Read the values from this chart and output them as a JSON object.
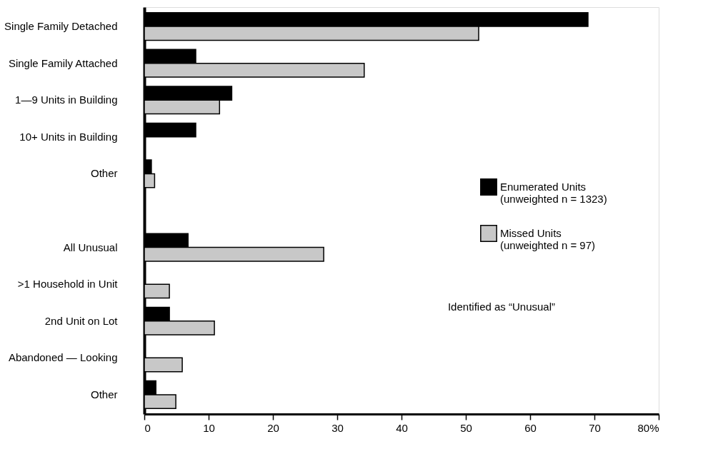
{
  "chart_data": {
    "type": "bar",
    "orientation": "horizontal",
    "categories": [
      "Single Family Detached",
      "Single Family Attached",
      "1—9 Units in Building",
      "10+ Units in Building",
      "Other",
      null,
      "All Unusual",
      ">1 Household in Unit",
      "2nd Unit on Lot",
      "Abandoned — Looking",
      "Other"
    ],
    "series": [
      {
        "name": "Enumerated Units\n(unweighted n = 1323)",
        "color": "#000000",
        "values": [
          69,
          8,
          13.6,
          8,
          1.1,
          null,
          6.8,
          null,
          3.9,
          null,
          1.8
        ]
      },
      {
        "name": "Missed Units\n(unweighted n = 97)",
        "color": "#c8c8c8",
        "values": [
          52,
          34.2,
          11.7,
          null,
          1.6,
          null,
          27.9,
          3.9,
          10.9,
          5.9,
          4.9
        ]
      }
    ],
    "xlim": [
      0,
      80
    ],
    "xticks": [
      0,
      10,
      20,
      30,
      40,
      50,
      60,
      70,
      {
        "value": 80,
        "label": "80%"
      }
    ],
    "grid": false,
    "legend": "right",
    "annotations": [
      "Identified as “Unusual”"
    ]
  }
}
